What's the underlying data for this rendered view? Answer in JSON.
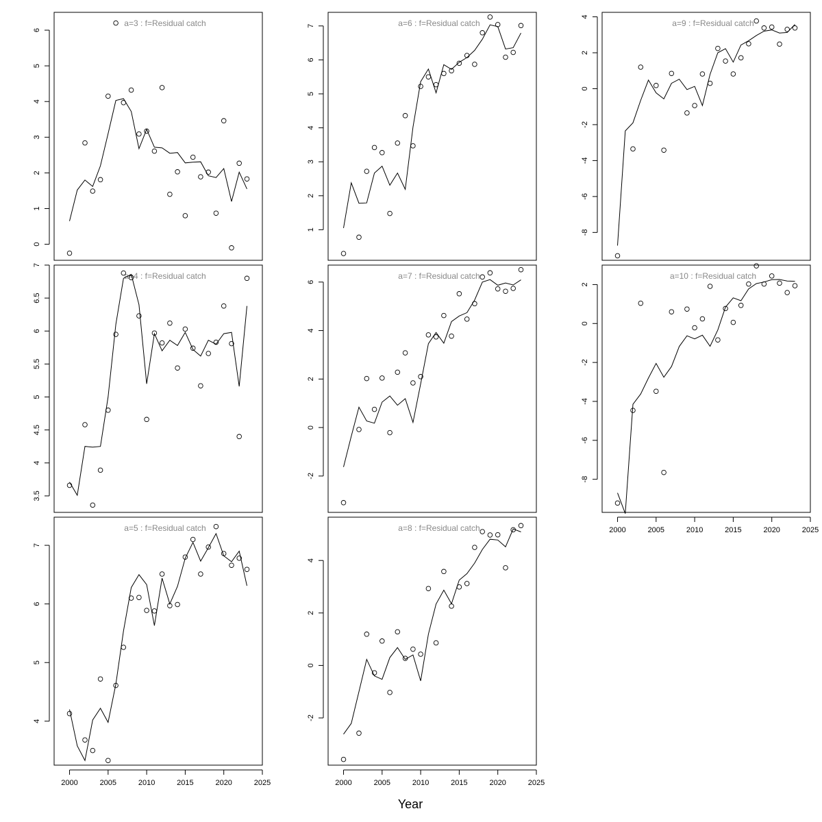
{
  "figure": {
    "xlabel": "Year"
  },
  "chart_data": [
    {
      "type": "scatter",
      "title": "a=3  :  f=Residual catch",
      "x": [
        2000,
        2001,
        2002,
        2003,
        2004,
        2005,
        2006,
        2007,
        2008,
        2009,
        2010,
        2011,
        2012,
        2013,
        2014,
        2015,
        2016,
        2017,
        2018,
        2019,
        2020,
        2021,
        2022,
        2023
      ],
      "series": [
        {
          "role": "observed",
          "values": [
            -0.25,
            null,
            2.84,
            1.49,
            1.81,
            4.15,
            6.2,
            3.97,
            4.32,
            3.09,
            3.17,
            2.61,
            4.39,
            1.4,
            2.03,
            0.8,
            2.44,
            1.89,
            2.02,
            0.87,
            3.46,
            -0.1,
            2.27,
            1.83
          ]
        },
        {
          "role": "fitted",
          "values": [
            0.65,
            1.52,
            1.8,
            1.62,
            2.2,
            3.1,
            4.03,
            4.08,
            3.72,
            2.68,
            3.22,
            2.72,
            2.7,
            2.55,
            2.57,
            2.28,
            2.3,
            2.31,
            1.92,
            1.87,
            2.12,
            1.2,
            2.02,
            1.55
          ]
        }
      ],
      "ylim": [
        -0.45,
        6.5
      ],
      "yticks": [
        0,
        1,
        2,
        3,
        4,
        5,
        6
      ],
      "xlim": [
        1998,
        2025
      ],
      "xticks": [
        2000,
        2005,
        2010,
        2015,
        2020,
        2025
      ]
    },
    {
      "type": "scatter",
      "title": "a=4  :  f=Residual catch",
      "x": [
        2000,
        2001,
        2002,
        2003,
        2004,
        2005,
        2006,
        2007,
        2008,
        2009,
        2010,
        2011,
        2012,
        2013,
        2014,
        2015,
        2016,
        2017,
        2018,
        2019,
        2020,
        2021,
        2022,
        2023
      ],
      "series": [
        {
          "role": "observed",
          "values": [
            3.66,
            null,
            4.58,
            3.36,
            3.89,
            4.8,
            5.95,
            6.88,
            6.81,
            6.23,
            4.66,
            5.97,
            5.82,
            6.12,
            5.44,
            6.03,
            5.74,
            5.17,
            5.66,
            5.83,
            6.38,
            5.81,
            4.4,
            6.8
          ]
        },
        {
          "role": "fitted",
          "values": [
            3.71,
            3.51,
            4.25,
            4.24,
            4.25,
            5.0,
            6.1,
            6.8,
            6.86,
            6.4,
            5.2,
            5.96,
            5.7,
            5.86,
            5.78,
            5.98,
            5.72,
            5.62,
            5.86,
            5.8,
            5.96,
            5.98,
            5.16,
            6.38
          ]
        }
      ],
      "ylim": [
        3.25,
        7.0
      ],
      "yticks": [
        3.5,
        4.0,
        4.5,
        5.0,
        5.5,
        6.0,
        6.5,
        7.0
      ],
      "xlim": [
        1998,
        2025
      ],
      "xticks": [
        2000,
        2005,
        2010,
        2015,
        2020,
        2025
      ]
    },
    {
      "type": "scatter",
      "title": "a=5  :  f=Residual catch",
      "x": [
        2000,
        2001,
        2002,
        2003,
        2004,
        2005,
        2006,
        2007,
        2008,
        2009,
        2010,
        2011,
        2012,
        2013,
        2014,
        2015,
        2016,
        2017,
        2018,
        2019,
        2020,
        2021,
        2022,
        2023
      ],
      "series": [
        {
          "role": "observed",
          "values": [
            4.13,
            null,
            3.68,
            3.5,
            4.72,
            3.33,
            4.61,
            5.26,
            6.1,
            6.11,
            5.89,
            5.88,
            6.51,
            5.97,
            5.99,
            6.8,
            7.1,
            6.51,
            6.97,
            7.32,
            6.86,
            6.66,
            6.78,
            6.59
          ]
        },
        {
          "role": "fitted",
          "values": [
            4.2,
            3.58,
            3.33,
            4.02,
            4.22,
            3.98,
            4.63,
            5.54,
            6.28,
            6.5,
            6.33,
            5.63,
            6.44,
            6.0,
            6.3,
            6.78,
            7.05,
            6.73,
            6.96,
            7.2,
            6.82,
            6.72,
            6.9,
            6.31
          ]
        }
      ],
      "ylim": [
        3.25,
        7.48
      ],
      "yticks": [
        4,
        5,
        6,
        7
      ],
      "xlim": [
        1998,
        2025
      ],
      "xticks": [
        2000,
        2005,
        2010,
        2015,
        2020,
        2025
      ]
    },
    {
      "type": "scatter",
      "title": "a=6  :  f=Residual catch",
      "x": [
        2000,
        2001,
        2002,
        2003,
        2004,
        2005,
        2006,
        2007,
        2008,
        2009,
        2010,
        2011,
        2012,
        2013,
        2014,
        2015,
        2016,
        2017,
        2018,
        2019,
        2020,
        2021,
        2022,
        2023
      ],
      "series": [
        {
          "role": "observed",
          "values": [
            0.3,
            null,
            0.78,
            2.72,
            3.42,
            3.27,
            1.48,
            3.55,
            4.36,
            3.47,
            5.22,
            5.5,
            5.27,
            5.6,
            5.68,
            5.9,
            6.13,
            5.87,
            6.8,
            7.26,
            7.04,
            6.08,
            6.22,
            7.01
          ]
        },
        {
          "role": "fitted",
          "values": [
            1.05,
            2.38,
            1.78,
            1.79,
            2.67,
            2.87,
            2.31,
            2.67,
            2.19,
            4.02,
            5.36,
            5.73,
            5.03,
            5.86,
            5.72,
            5.93,
            6.07,
            6.28,
            6.61,
            7.03,
            6.98,
            6.32,
            6.36,
            6.79
          ]
        }
      ],
      "ylim": [
        0.1,
        7.4
      ],
      "yticks": [
        1,
        2,
        3,
        4,
        5,
        6,
        7
      ],
      "xlim": [
        1998,
        2025
      ],
      "xticks": [
        2000,
        2005,
        2010,
        2015,
        2020,
        2025
      ]
    },
    {
      "type": "scatter",
      "title": "a=7  :  f=Residual catch",
      "x": [
        2000,
        2001,
        2002,
        2003,
        2004,
        2005,
        2006,
        2007,
        2008,
        2009,
        2010,
        2011,
        2012,
        2013,
        2014,
        2015,
        2016,
        2017,
        2018,
        2019,
        2020,
        2021,
        2022,
        2023
      ],
      "series": [
        {
          "role": "observed",
          "values": [
            -3.1,
            null,
            -0.08,
            2.02,
            0.75,
            2.04,
            -0.21,
            2.28,
            3.08,
            1.84,
            2.1,
            3.82,
            3.74,
            4.62,
            3.77,
            5.52,
            4.47,
            5.11,
            6.21,
            6.38,
            5.72,
            5.62,
            5.74,
            6.51
          ]
        },
        {
          "role": "fitted",
          "values": [
            -1.63,
            -0.36,
            0.84,
            0.27,
            0.18,
            1.05,
            1.3,
            0.92,
            1.19,
            0.21,
            1.8,
            3.46,
            3.92,
            3.48,
            4.37,
            4.6,
            4.74,
            5.26,
            6.0,
            6.1,
            5.87,
            5.96,
            5.88,
            6.09
          ]
        }
      ],
      "ylim": [
        -3.5,
        6.7
      ],
      "yticks": [
        -2,
        0,
        2,
        4,
        6
      ],
      "xlim": [
        1998,
        2025
      ],
      "xticks": [
        2000,
        2005,
        2010,
        2015,
        2020,
        2025
      ]
    },
    {
      "type": "scatter",
      "title": "a=8  :  f=Residual catch",
      "x": [
        2000,
        2001,
        2002,
        2003,
        2004,
        2005,
        2006,
        2007,
        2008,
        2009,
        2010,
        2011,
        2012,
        2013,
        2014,
        2015,
        2016,
        2017,
        2018,
        2019,
        2020,
        2021,
        2022,
        2023
      ],
      "series": [
        {
          "role": "observed",
          "values": [
            -3.58,
            null,
            -2.58,
            1.19,
            -0.28,
            0.93,
            -1.03,
            1.28,
            0.27,
            0.62,
            0.43,
            2.93,
            0.86,
            3.58,
            2.26,
            2.99,
            3.12,
            4.5,
            5.1,
            4.97,
            4.98,
            3.72,
            5.17,
            5.33
          ]
        },
        {
          "role": "fitted",
          "values": [
            -2.62,
            -2.21,
            -1.0,
            0.23,
            -0.4,
            -0.53,
            0.3,
            0.68,
            0.23,
            0.4,
            -0.59,
            1.19,
            2.34,
            2.87,
            2.35,
            3.25,
            3.5,
            3.9,
            4.42,
            4.81,
            4.78,
            4.52,
            5.2,
            5.09
          ]
        }
      ],
      "ylim": [
        -3.8,
        5.65
      ],
      "yticks": [
        -2,
        0,
        2,
        4
      ],
      "xlim": [
        1998,
        2025
      ],
      "xticks": [
        2000,
        2005,
        2010,
        2015,
        2020,
        2025
      ]
    },
    {
      "type": "scatter",
      "title": "a=9  :  f=Residual catch",
      "x": [
        2000,
        2001,
        2002,
        2003,
        2004,
        2005,
        2006,
        2007,
        2008,
        2009,
        2010,
        2011,
        2012,
        2013,
        2014,
        2015,
        2016,
        2017,
        2018,
        2019,
        2020,
        2021,
        2022,
        2023
      ],
      "series": [
        {
          "role": "observed",
          "values": [
            -9.3,
            null,
            -3.35,
            1.2,
            null,
            0.18,
            -3.42,
            0.85,
            null,
            -1.35,
            -0.94,
            0.82,
            0.3,
            2.24,
            1.54,
            0.82,
            1.72,
            2.5,
            3.77,
            3.38,
            3.43,
            2.48,
            3.3,
            3.38
          ]
        },
        {
          "role": "fitted",
          "values": [
            -8.73,
            -2.35,
            -1.9,
            -0.65,
            0.48,
            -0.23,
            -0.57,
            0.3,
            0.53,
            -0.05,
            0.13,
            -0.94,
            0.8,
            2.0,
            2.23,
            1.48,
            2.43,
            2.67,
            2.96,
            3.2,
            3.27,
            3.1,
            3.13,
            3.58
          ]
        }
      ],
      "ylim": [
        -9.55,
        4.25
      ],
      "yticks": [
        -8,
        -6,
        -4,
        -2,
        0,
        2,
        4
      ],
      "xlim": [
        1998,
        2025
      ],
      "xticks": [
        2000,
        2005,
        2010,
        2015,
        2020,
        2025
      ]
    },
    {
      "type": "scatter",
      "title": "a=10  :  f=Residual catch",
      "x": [
        2000,
        2001,
        2002,
        2003,
        2004,
        2005,
        2006,
        2007,
        2008,
        2009,
        2010,
        2011,
        2012,
        2013,
        2014,
        2015,
        2016,
        2017,
        2018,
        2019,
        2020,
        2021,
        2022,
        2023
      ],
      "series": [
        {
          "role": "observed",
          "values": [
            -9.22,
            null,
            -4.46,
            1.04,
            null,
            -3.48,
            -7.65,
            0.6,
            null,
            0.74,
            -0.22,
            0.24,
            1.91,
            -0.84,
            0.77,
            0.06,
            0.93,
            2.03,
            2.96,
            2.03,
            2.44,
            2.07,
            1.59,
            1.94
          ]
        },
        {
          "role": "fitted",
          "values": [
            -8.7,
            -9.76,
            -4.15,
            -3.62,
            -2.8,
            -2.05,
            -2.76,
            -2.21,
            -1.18,
            -0.63,
            -0.79,
            -0.6,
            -1.17,
            -0.33,
            0.84,
            1.32,
            1.17,
            1.78,
            2.05,
            2.13,
            2.25,
            2.26,
            2.18,
            2.17
          ]
        }
      ],
      "ylim": [
        -9.7,
        3.0
      ],
      "yticks": [
        -8,
        -6,
        -4,
        -2,
        0,
        2
      ],
      "xlim": [
        1998,
        2025
      ],
      "xticks": [
        2000,
        2005,
        2010,
        2015,
        2020,
        2025
      ]
    }
  ]
}
